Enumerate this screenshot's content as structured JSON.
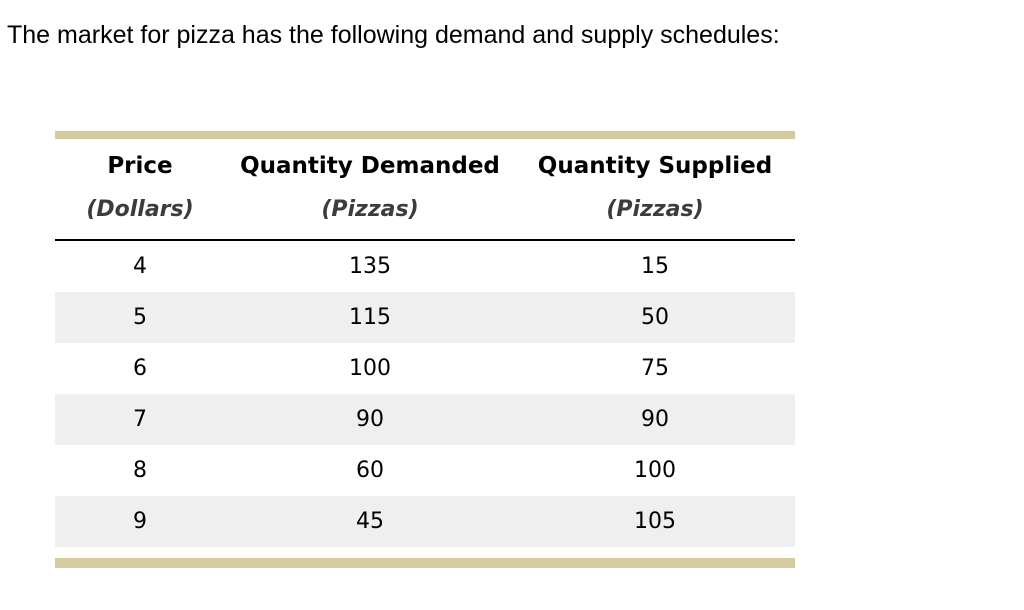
{
  "question": {
    "text": "The market for pizza has the following demand and supply schedules:"
  },
  "table": {
    "columns": [
      {
        "label": "Price",
        "unit": "(Dollars)"
      },
      {
        "label": "Quantity Demanded",
        "unit": "(Pizzas)"
      },
      {
        "label": "Quantity Supplied",
        "unit": "(Pizzas)"
      }
    ],
    "rows": [
      [
        "4",
        "135",
        "15"
      ],
      [
        "5",
        "115",
        "50"
      ],
      [
        "6",
        "100",
        "75"
      ],
      [
        "7",
        "90",
        "90"
      ],
      [
        "8",
        "60",
        "100"
      ],
      [
        "9",
        "45",
        "105"
      ]
    ]
  },
  "chart_data": {
    "type": "table",
    "title": "The market for pizza has the following demand and supply schedules:",
    "columns": [
      "Price (Dollars)",
      "Quantity Demanded (Pizzas)",
      "Quantity Supplied (Pizzas)"
    ],
    "rows": [
      [
        4,
        135,
        15
      ],
      [
        5,
        115,
        50
      ],
      [
        6,
        100,
        75
      ],
      [
        7,
        90,
        90
      ],
      [
        8,
        60,
        100
      ],
      [
        9,
        45,
        105
      ]
    ]
  },
  "colors": {
    "accent_bar": "#d5cba0",
    "row_stripe": "#efefef",
    "unit_text": "#3c3c3c"
  }
}
